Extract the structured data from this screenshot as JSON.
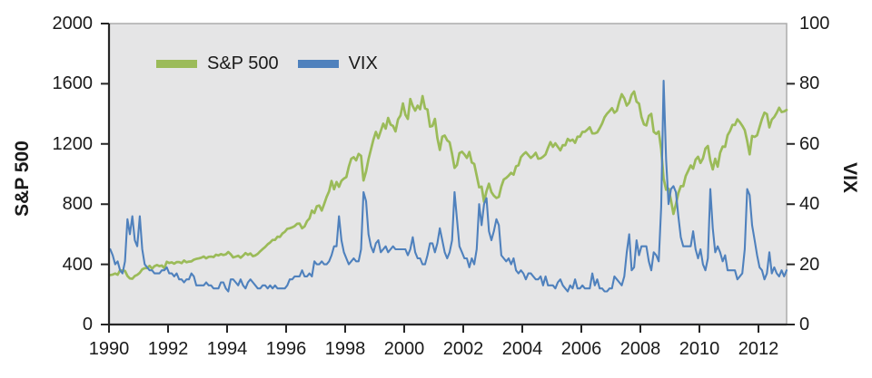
{
  "chart_data": {
    "type": "line",
    "title": "",
    "grid": false,
    "plot_bg": "#e5e5e6",
    "plot_border": "#ababab",
    "axis_color": "#262626",
    "legend_position": "top-inside",
    "x_range": [
      1990,
      2012.96
    ],
    "x_start": 1990.042,
    "x_step": 0.083333,
    "axes": {
      "left": {
        "label": "S&P 500",
        "min": 0,
        "max": 2000,
        "tick_labels": [
          "2000",
          "1600",
          "1200",
          "800",
          "400",
          "0"
        ]
      },
      "right": {
        "label": "VIX",
        "min": 0,
        "max": 100,
        "tick_labels": [
          "100",
          "80",
          "60",
          "40",
          "20",
          "0"
        ]
      },
      "x": {
        "tick_labels": [
          "1990",
          "1992",
          "1994",
          "1996",
          "1998",
          "2000",
          "2002",
          "2004",
          "2006",
          "2008",
          "2010",
          "2012"
        ]
      }
    },
    "legend": [
      {
        "label": "S&P 500",
        "color": "#9bbb59"
      },
      {
        "label": "VIX",
        "color": "#4f81bd"
      }
    ],
    "series": [
      {
        "name": "S&P 500",
        "axis": "left",
        "color": "#9bbb59",
        "stroke_width": 2.7,
        "values": [
          329,
          332,
          339,
          331,
          361,
          358,
          356,
          323,
          306,
          304,
          322,
          330,
          344,
          367,
          375,
          375,
          390,
          371,
          388,
          395,
          388,
          392,
          375,
          417,
          409,
          413,
          404,
          415,
          415,
          408,
          425,
          414,
          418,
          419,
          431,
          436,
          439,
          444,
          452,
          440,
          450,
          451,
          448,
          464,
          459,
          468,
          462,
          466,
          482,
          467,
          446,
          451,
          457,
          444,
          458,
          475,
          463,
          472,
          454,
          459,
          470,
          487,
          501,
          515,
          533,
          545,
          562,
          562,
          584,
          582,
          605,
          616,
          636,
          640,
          646,
          654,
          669,
          671,
          640,
          652,
          687,
          705,
          757,
          741,
          786,
          791,
          757,
          801,
          848,
          885,
          954,
          899,
          947,
          915,
          955,
          970,
          980,
          1049,
          1102,
          1112,
          1091,
          1134,
          1121,
          957,
          1017,
          1099,
          1164,
          1229,
          1280,
          1238,
          1286,
          1335,
          1302,
          1373,
          1329,
          1320,
          1283,
          1363,
          1389,
          1469,
          1394,
          1366,
          1499,
          1452,
          1421,
          1455,
          1431,
          1518,
          1437,
          1429,
          1315,
          1320,
          1366,
          1240,
          1160,
          1249,
          1256,
          1224,
          1211,
          1134,
          1041,
          1060,
          1139,
          1148,
          1130,
          1107,
          1147,
          1077,
          1067,
          990,
          912,
          916,
          815,
          886,
          936,
          880,
          856,
          841,
          848,
          917,
          964,
          975,
          990,
          1008,
          996,
          1051,
          1058,
          1112,
          1131,
          1145,
          1126,
          1107,
          1121,
          1141,
          1102,
          1104,
          1115,
          1130,
          1174,
          1212,
          1181,
          1204,
          1181,
          1157,
          1192,
          1191,
          1234,
          1220,
          1229,
          1207,
          1249,
          1248,
          1280,
          1281,
          1295,
          1311,
          1270,
          1270,
          1277,
          1304,
          1336,
          1378,
          1401,
          1418,
          1438,
          1407,
          1421,
          1482,
          1531,
          1503,
          1455,
          1474,
          1527,
          1549,
          1481,
          1468,
          1379,
          1331,
          1323,
          1386,
          1400,
          1280,
          1267,
          1283,
          1165,
          969,
          896,
          903,
          826,
          735,
          798,
          873,
          919,
          919,
          987,
          1021,
          1057,
          1036,
          1096,
          1115,
          1074,
          1104,
          1169,
          1187,
          1089,
          1031,
          1102,
          1049,
          1141,
          1183,
          1181,
          1258,
          1286,
          1327,
          1326,
          1364,
          1345,
          1321,
          1292,
          1219,
          1131,
          1253,
          1247,
          1258,
          1312,
          1366,
          1408,
          1398,
          1310,
          1362,
          1379,
          1407,
          1441,
          1412,
          1416,
          1426
        ]
      },
      {
        "name": "VIX",
        "axis": "right",
        "color": "#4f81bd",
        "stroke_width": 2.1,
        "values": [
          25,
          23,
          20,
          21,
          18,
          17,
          21,
          35,
          30,
          36,
          28,
          26,
          36,
          25,
          20,
          19,
          18,
          18,
          17,
          17,
          17,
          18,
          18,
          19,
          17,
          17,
          16,
          17,
          15,
          15,
          14,
          15,
          15,
          17,
          16,
          13,
          13,
          13,
          13,
          14,
          13,
          13,
          12,
          12,
          12,
          14,
          14,
          12,
          11,
          15,
          15,
          14,
          13,
          15,
          13,
          12,
          14,
          15,
          14,
          13,
          12,
          12,
          13,
          13,
          12,
          13,
          12,
          13,
          12,
          12,
          12,
          12,
          13,
          15,
          15,
          16,
          16,
          16,
          18,
          16,
          16,
          17,
          16,
          21,
          20,
          20,
          21,
          20,
          20,
          21,
          23,
          26,
          26,
          36,
          28,
          24,
          22,
          20,
          21,
          22,
          21,
          21,
          25,
          44,
          41,
          30,
          26,
          24,
          27,
          28,
          24,
          25,
          26,
          24,
          25,
          26,
          25,
          25,
          25,
          25,
          25,
          23,
          25,
          29,
          24,
          22,
          22,
          20,
          20,
          23,
          27,
          27,
          24,
          27,
          32,
          28,
          24,
          22,
          24,
          28,
          44,
          35,
          26,
          24,
          22,
          22,
          19,
          22,
          20,
          25,
          40,
          33,
          40,
          42,
          31,
          28,
          31,
          35,
          33,
          23,
          22,
          21,
          22,
          20,
          22,
          18,
          17,
          18,
          17,
          15,
          17,
          17,
          16,
          15,
          15,
          16,
          13,
          16,
          13,
          13,
          13,
          12,
          14,
          15,
          13,
          12,
          11,
          13,
          12,
          15,
          12,
          12,
          13,
          12,
          12,
          12,
          17,
          13,
          15,
          12,
          12,
          11,
          11,
          12,
          12,
          16,
          15,
          14,
          13,
          16,
          24,
          30,
          18,
          19,
          28,
          23,
          26,
          26,
          26,
          21,
          18,
          24,
          23,
          21,
          39,
          81,
          55,
          40,
          45,
          46,
          44,
          36,
          29,
          26,
          26,
          26,
          26,
          31,
          25,
          22,
          25,
          20,
          18,
          22,
          45,
          32,
          24,
          26,
          24,
          21,
          23,
          18,
          18,
          18,
          18,
          15,
          16,
          17,
          25,
          45,
          43,
          33,
          28,
          23,
          19,
          18,
          15,
          17,
          24,
          17,
          19,
          17,
          16,
          18,
          16,
          18
        ]
      }
    ]
  }
}
